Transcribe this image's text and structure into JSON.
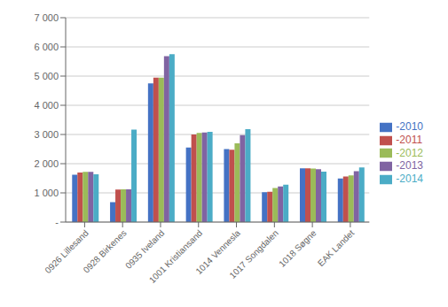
{
  "chart_data": {
    "type": "bar",
    "categories": [
      "0926 Lillesand",
      "0928 Birkenes",
      "0935 Iveland",
      "1001 Kristiansand",
      "1014 Vennesla",
      "1017 Songdalen",
      "1018 Søgne",
      "EAK Landet"
    ],
    "series": [
      {
        "name": "-2010",
        "color": "#4472C4",
        "values": [
          1620,
          680,
          4750,
          2550,
          2500,
          1020,
          1840,
          1490
        ]
      },
      {
        "name": "-2011",
        "color": "#C0504D",
        "values": [
          1700,
          1110,
          4950,
          3000,
          2480,
          1040,
          1840,
          1560
        ]
      },
      {
        "name": "-2012",
        "color": "#9BBB59",
        "values": [
          1720,
          1120,
          4950,
          3050,
          2700,
          1170,
          1830,
          1600
        ]
      },
      {
        "name": "-2013",
        "color": "#8064A2",
        "values": [
          1720,
          1120,
          5680,
          3070,
          2980,
          1220,
          1810,
          1740
        ]
      },
      {
        "name": "-2014",
        "color": "#4BACC6",
        "values": [
          1640,
          3170,
          5750,
          3090,
          3180,
          1280,
          1730,
          1870
        ]
      }
    ],
    "ylim": [
      0,
      7000
    ],
    "yticks": [
      {
        "value": 0,
        "label": "-"
      },
      {
        "value": 1000,
        "label": "1 000"
      },
      {
        "value": 2000,
        "label": "2 000"
      },
      {
        "value": 3000,
        "label": "3 000"
      },
      {
        "value": 4000,
        "label": "4 000"
      },
      {
        "value": 5000,
        "label": "5 000"
      },
      {
        "value": 6000,
        "label": "6 000"
      },
      {
        "value": 7000,
        "label": "7 000"
      }
    ],
    "grid": true,
    "legend": "right"
  }
}
